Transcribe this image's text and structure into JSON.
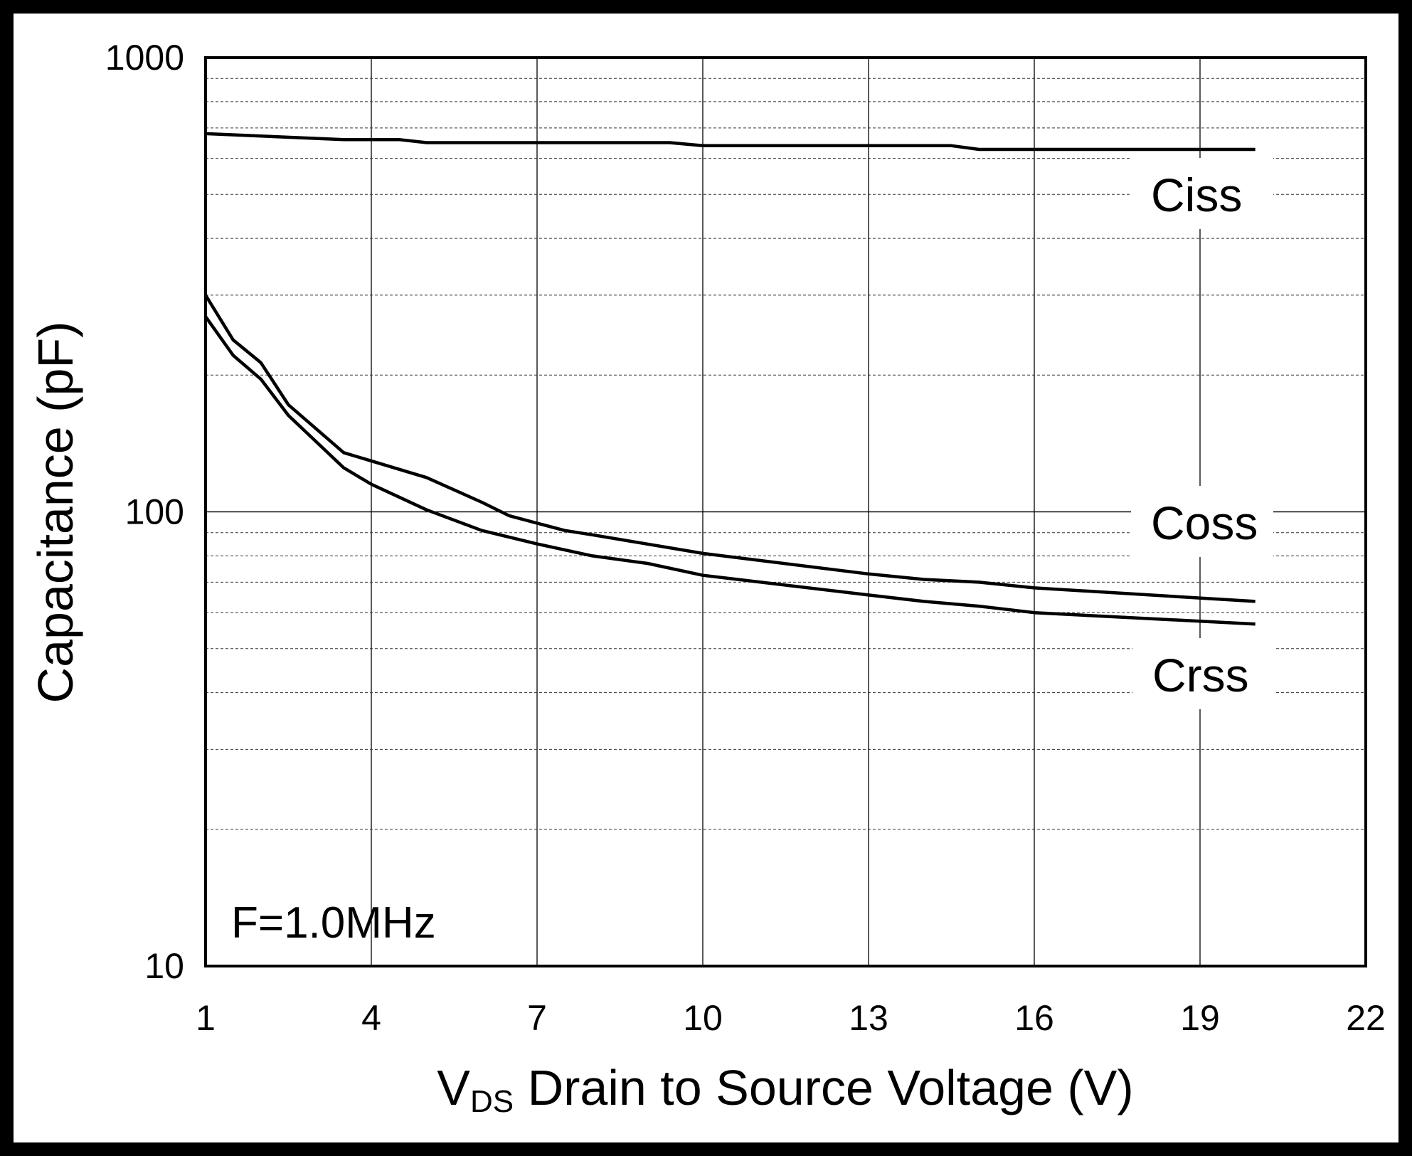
{
  "chart_data": {
    "type": "line",
    "title": "",
    "xlabel_main": "V",
    "xlabel_sub": "DS",
    "xlabel_rest": " Drain to Source Voltage (V)",
    "ylabel": "Capacitance (pF)",
    "xscale": "linear",
    "yscale": "log",
    "xlim": [
      1,
      22
    ],
    "ylim": [
      10,
      1000
    ],
    "xticks": [
      "1",
      "4",
      "7",
      "10",
      "13",
      "16",
      "19",
      "22"
    ],
    "yticks": [
      "10",
      "100",
      "1000"
    ],
    "grid": true,
    "annotation": "F=1.0MHz",
    "series": [
      {
        "name": "Ciss",
        "x": [
          1,
          3.5,
          4.5,
          5,
          9.4,
          10,
          14.5,
          15,
          20
        ],
        "y": [
          680,
          660,
          660,
          650,
          650,
          640,
          640,
          628,
          628
        ]
      },
      {
        "name": "Coss",
        "x": [
          1,
          1.5,
          2,
          2.5,
          3.5,
          5,
          6,
          6.5,
          7.5,
          8,
          10,
          13,
          14,
          15,
          16,
          20
        ],
        "y": [
          300,
          239,
          213,
          172,
          135,
          119,
          105,
          98,
          91,
          89,
          81,
          73,
          71,
          70,
          68,
          63.5
        ]
      },
      {
        "name": "Crss",
        "x": [
          1,
          1.5,
          2,
          2.5,
          3.5,
          4,
          5,
          6,
          7,
          8,
          9,
          10,
          13,
          14,
          15,
          16,
          20
        ],
        "y": [
          269,
          221,
          196,
          163,
          125,
          115,
          101,
          91,
          85,
          80,
          77,
          72.5,
          65.6,
          63.5,
          62,
          60,
          56.6
        ]
      }
    ]
  }
}
